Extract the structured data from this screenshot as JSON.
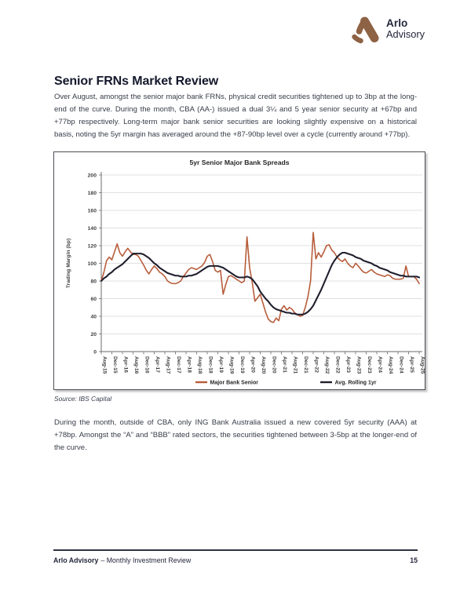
{
  "header": {
    "logo": {
      "brand_line1": "Arlo",
      "brand_line2": "Advisory",
      "mark_color": "#8E6244",
      "text_color": "#23263A"
    }
  },
  "article": {
    "title": "Senior FRNs Market Review",
    "paragraph_1": "Over August, amongst the senior major bank FRNs, physical credit securities tightened up to 3bp at the long-end of the curve. During the month, CBA (AA-) issued a dual 3¼ and 5 year senior security at +67bp and +77bp respectively. Long-term major bank senior securities are looking slightly expensive on a historical basis, noting the 5yr margin has averaged around the +87-90bp level over a cycle (currently around +77bp).",
    "source_note": "Source: IBS Capital",
    "paragraph_2": "During the month, outside of CBA, only ING Bank Australia issued a new covered 5yr security (AAA) at +78bp. Amongst the “A” and “BBB” rated sectors, the securities tightened between 3-5bp at the longer-end of the curve."
  },
  "footer": {
    "brand": "Arlo Advisory",
    "rest": "– Monthly Investment Review",
    "page_number": "15"
  },
  "chart_data": {
    "type": "line",
    "title": "5yr Senior Major Bank Spreads",
    "ylabel": "Trading Margin (bp)",
    "ylim": [
      0,
      200
    ],
    "ytick_interval": 20,
    "grid": true,
    "legend_position": "bottom",
    "x_frequency": "monthly",
    "x_start": "Aug-15",
    "x_end": "Aug-25",
    "xticks_every_n_points": 4,
    "xtick_labels": [
      "Aug-15",
      "Dec-15",
      "Apr-16",
      "Aug-16",
      "Dec-16",
      "Apr-17",
      "Aug-17",
      "Dec-17",
      "Apr-18",
      "Aug-18",
      "Dec-18",
      "Apr-19",
      "Aug-19",
      "Dec-19",
      "Apr-20",
      "Aug-20",
      "Dec-20",
      "Apr-21",
      "Aug-21",
      "Dec-21",
      "Apr-22",
      "Aug-22",
      "Dec-22",
      "Apr-23",
      "Aug-23",
      "Dec-23",
      "Apr-24",
      "Aug-24",
      "Dec-24",
      "Apr-25",
      "Aug-25"
    ],
    "series": [
      {
        "name": "Major Bank Senior",
        "color": "#B75D3B",
        "values": [
          80,
          90,
          103,
          107,
          104,
          113,
          122,
          112,
          108,
          113,
          117,
          113,
          110,
          110,
          108,
          103,
          98,
          92,
          88,
          93,
          97,
          94,
          90,
          88,
          85,
          80,
          78,
          77,
          77,
          78,
          80,
          85,
          89,
          93,
          95,
          94,
          93,
          95,
          97,
          101,
          108,
          110,
          102,
          92,
          90,
          92,
          65,
          76,
          85,
          86,
          84,
          82,
          80,
          78,
          80,
          130,
          95,
          78,
          57,
          61,
          65,
          55,
          45,
          37,
          34,
          33,
          38,
          35,
          48,
          52,
          47,
          50,
          48,
          44,
          42,
          40,
          41,
          50,
          62,
          80,
          135,
          105,
          112,
          107,
          113,
          120,
          121,
          115,
          112,
          107,
          104,
          102,
          105,
          100,
          97,
          95,
          100,
          97,
          93,
          90,
          89,
          91,
          93,
          90,
          88,
          87,
          86,
          85,
          87,
          86,
          83,
          82,
          82,
          82,
          83,
          97,
          85,
          85,
          85,
          82,
          77
        ]
      },
      {
        "name": "Avg. Rolling 1yr",
        "color": "#1F1F2E",
        "values": [
          80,
          83,
          85,
          88,
          90,
          93,
          95,
          97,
          99,
          102,
          105,
          108,
          111,
          111,
          111,
          111,
          110,
          108,
          106,
          103,
          100,
          98,
          95,
          93,
          91,
          89,
          88,
          87,
          86,
          86,
          85,
          85,
          85,
          86,
          86,
          87,
          88,
          90,
          92,
          94,
          96,
          97,
          97,
          97,
          97,
          96,
          95,
          93,
          91,
          89,
          87,
          85,
          84,
          84,
          84,
          85,
          84,
          82,
          78,
          74,
          68,
          64,
          60,
          57,
          53,
          50,
          48,
          47,
          46,
          45,
          44,
          44,
          43,
          43,
          42,
          42,
          42,
          43,
          45,
          48,
          52,
          58,
          64,
          70,
          77,
          84,
          91,
          98,
          103,
          107,
          110,
          112,
          112,
          111,
          110,
          109,
          107,
          106,
          105,
          103,
          102,
          101,
          100,
          98,
          97,
          95,
          94,
          93,
          92,
          90,
          89,
          88,
          87,
          86,
          86,
          85,
          85,
          85,
          85,
          85,
          84
        ]
      }
    ]
  }
}
